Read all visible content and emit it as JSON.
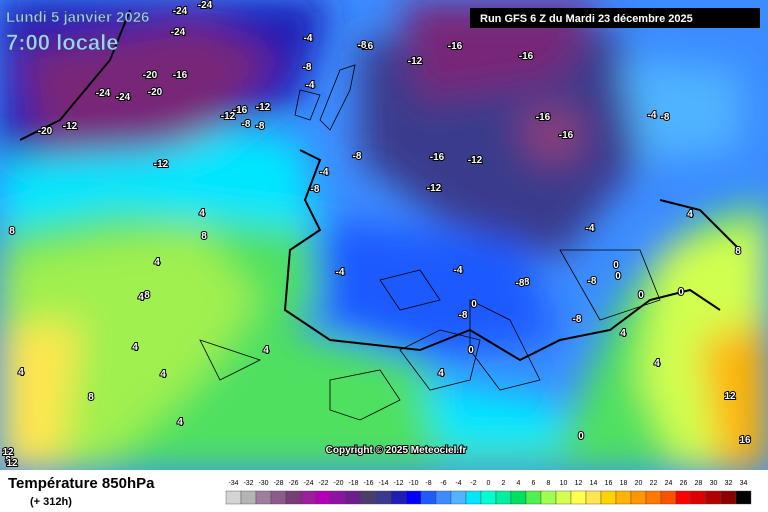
{
  "header": {
    "date": "Lundi 5 janvier 2026",
    "time": "7:00 locale",
    "run": "Run GFS 6 Z du Mardi 23 décembre 2025"
  },
  "map": {
    "copyright": "Copyright © 2025 Meteociel.fr",
    "labels": [
      "-24",
      "-24",
      "-24",
      "-20",
      "-16",
      "-24",
      "-24",
      "-20",
      "-20",
      "-12",
      "-12",
      "-16",
      "-8",
      "-12",
      "-8",
      "-4",
      "-8",
      "-12",
      "-16",
      "-16",
      "-8",
      "-16",
      "-16",
      "-12",
      "-16",
      "-16",
      "-12",
      "-4",
      "-8",
      "-8",
      "-4",
      "-12",
      "-8",
      "-4",
      "-4",
      "-8",
      "-4",
      "-8",
      "-8",
      "0",
      "0",
      "4",
      "4",
      "4",
      "8",
      "8",
      "8",
      "0",
      "0",
      "4",
      "4",
      "4",
      "4",
      "4",
      "4",
      "8",
      "8",
      "12",
      "12",
      "12",
      "16",
      "4",
      "4",
      "8",
      "4",
      "0",
      "0",
      "0",
      "-4",
      "-8",
      "-8"
    ]
  },
  "footer": {
    "title": "Température 850hPa",
    "lead": "(+ 312h)"
  },
  "legend": {
    "values": [
      "-34",
      "-32",
      "-30",
      "-28",
      "-26",
      "-24",
      "-22",
      "-20",
      "-18",
      "-16",
      "-14",
      "-12",
      "-10",
      "-8",
      "-6",
      "-4",
      "-2",
      "0",
      "2",
      "4",
      "6",
      "8",
      "10",
      "12",
      "14",
      "16",
      "18",
      "20",
      "22",
      "24",
      "26",
      "28",
      "30",
      "32",
      "34"
    ],
    "colors": [
      "#d4d4d4",
      "#b4b4b4",
      "#a07ca0",
      "#8c5a8c",
      "#783c78",
      "#9c1e9c",
      "#b400b4",
      "#8c14a0",
      "#6e1e8c",
      "#4b3c6e",
      "#3a3a8c",
      "#1e1eb4",
      "#0000ff",
      "#1e5aff",
      "#3c8cff",
      "#50b4ff",
      "#00e6ff",
      "#00ffd0",
      "#00f0a0",
      "#00e060",
      "#50f050",
      "#a0ff50",
      "#d2ff50",
      "#ffff50",
      "#ffe650",
      "#ffd200",
      "#ffb400",
      "#ff9600",
      "#ff7800",
      "#ff5000",
      "#ff0000",
      "#dc0000",
      "#b40000",
      "#8c0000",
      "#000000"
    ]
  }
}
